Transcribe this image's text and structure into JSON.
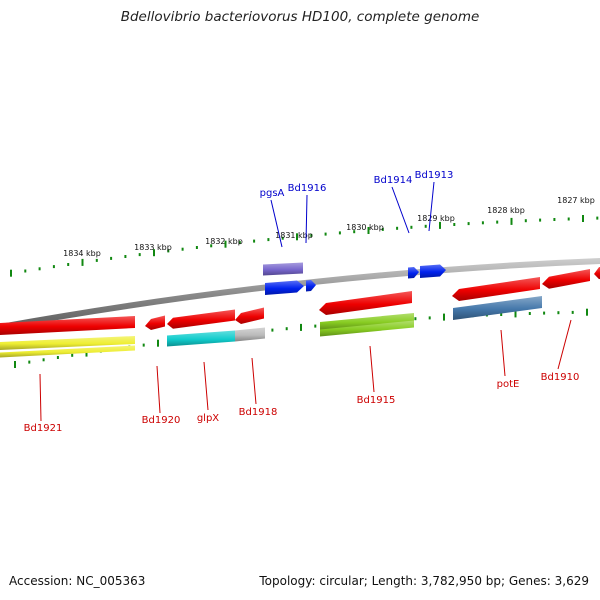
{
  "title": "Bdellovibrio bacteriovorus HD100, complete genome",
  "footer": {
    "accession": "Accession: NC_005363",
    "stats": "Topology: circular; Length: 3,782,950 bp; Genes: 3,629"
  },
  "scale": {
    "labels": [
      {
        "text": "1834 kbp",
        "kbp": 1834
      },
      {
        "text": "1833 kbp",
        "kbp": 1833
      },
      {
        "text": "1832 kbp",
        "kbp": 1832
      },
      {
        "text": "1831 kbp",
        "kbp": 1831
      },
      {
        "text": "1830 kbp",
        "kbp": 1830
      },
      {
        "text": "1829 kbp",
        "kbp": 1829
      },
      {
        "text": "1828 kbp",
        "kbp": 1828
      },
      {
        "text": "1827 kbp",
        "kbp": 1827
      }
    ]
  },
  "colors": {
    "tick": "#118811",
    "backbone": "#888888",
    "forward_label": "#0000cc",
    "reverse_label": "#cc0000"
  },
  "genes": {
    "forward": [
      {
        "label": "pgsA",
        "color": "#0022ee"
      },
      {
        "label": "Bd1916",
        "color": "#0022ee"
      },
      {
        "label": "Bd1914",
        "color": "#0022ee"
      },
      {
        "label": "Bd1913",
        "color": "#0022ee"
      }
    ],
    "reverse": [
      {
        "label": "Bd1921",
        "color": "#ee0000"
      },
      {
        "label": "Bd1920",
        "color": "#ee0000"
      },
      {
        "label": "glpX",
        "color": "#ee0000"
      },
      {
        "label": "Bd1918",
        "color": "#ee0000"
      },
      {
        "label": "Bd1915",
        "color": "#ee0000"
      },
      {
        "label": "potE",
        "color": "#ee0000"
      },
      {
        "label": "Bd1910",
        "color": "#ee0000"
      }
    ]
  },
  "feature_colors": [
    "#ee0000",
    "#0022ee",
    "#7766cc",
    "#11cccc",
    "#bbbbbb",
    "#eeee33",
    "#88cc22",
    "#4477aa"
  ]
}
